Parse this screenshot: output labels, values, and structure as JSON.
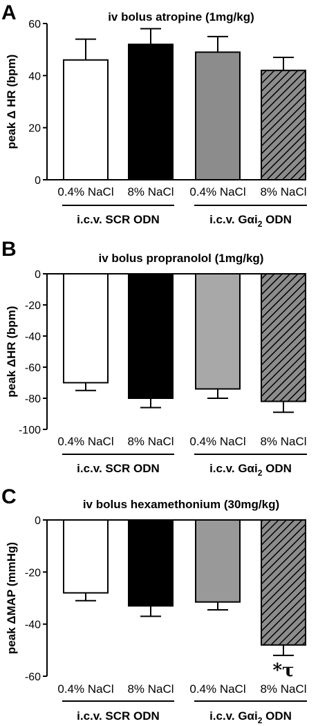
{
  "chart_data": [
    {
      "type": "bar",
      "panel": "A",
      "title": "iv bolus atropine (1mg/kg)",
      "ylabel": "peak Δ HR (bpm)",
      "ylim": [
        0,
        60
      ],
      "yticks": [
        "0",
        "20",
        "40",
        "60"
      ],
      "categories": [
        "0.4% NaCl",
        "8% NaCl",
        "0.4% NaCl",
        "8% NaCl"
      ],
      "groups": [
        {
          "label": "i.c.v. SCR ODN",
          "categories": [
            0,
            1
          ]
        },
        {
          "label": "i.c.v. Gαi",
          "sub": "2",
          "label_after": " ODN",
          "categories": [
            2,
            3
          ]
        }
      ],
      "values": [
        46,
        52,
        49,
        42
      ],
      "errors": [
        8,
        6,
        6,
        5
      ],
      "bar_fills": [
        "#ffffff",
        "#000000",
        "#8c8c8c",
        "hatch"
      ],
      "annotation": ""
    },
    {
      "type": "bar",
      "panel": "B",
      "title": "iv bolus propranolol (1mg/kg)",
      "ylabel": "peak ΔHR (bpm)",
      "ylim": [
        -100,
        0
      ],
      "yticks": [
        "0",
        "-20",
        "-40",
        "-60",
        "-80",
        "-100"
      ],
      "categories": [
        "0.4% NaCl",
        "8% NaCl",
        "0.4% NaCl",
        "8% NaCl"
      ],
      "groups": [
        {
          "label": "i.c.v. SCR ODN",
          "categories": [
            0,
            1
          ]
        },
        {
          "label": "i.c.v. Gαi",
          "sub": "2",
          "label_after": " ODN",
          "categories": [
            2,
            3
          ]
        }
      ],
      "values": [
        -70,
        -80,
        -74,
        -82
      ],
      "errors": [
        5,
        6,
        6,
        7
      ],
      "bar_fills": [
        "#ffffff",
        "#000000",
        "#a8a8a8",
        "hatch"
      ],
      "annotation": ""
    },
    {
      "type": "bar",
      "panel": "C",
      "title": "iv bolus hexamethonium (30mg/kg)",
      "ylabel": "peak ΔMAP (mmHg)",
      "ylim": [
        -60,
        0
      ],
      "yticks": [
        "0",
        "-20",
        "-40",
        "-60"
      ],
      "categories": [
        "0.4% NaCl",
        "8% NaCl",
        "0.4% NaCl",
        "8% NaCl"
      ],
      "groups": [
        {
          "label": "i.c.v. SCR ODN",
          "categories": [
            0,
            1
          ]
        },
        {
          "label": "i.c.v. Gαi",
          "sub": "2",
          "label_after": " ODN",
          "categories": [
            2,
            3
          ]
        }
      ],
      "values": [
        -28,
        -33,
        -31.5,
        -48
      ],
      "errors": [
        3,
        4,
        3,
        4
      ],
      "bar_fills": [
        "#ffffff",
        "#000000",
        "#999999",
        "hatch"
      ],
      "annotation": "*τ"
    }
  ]
}
